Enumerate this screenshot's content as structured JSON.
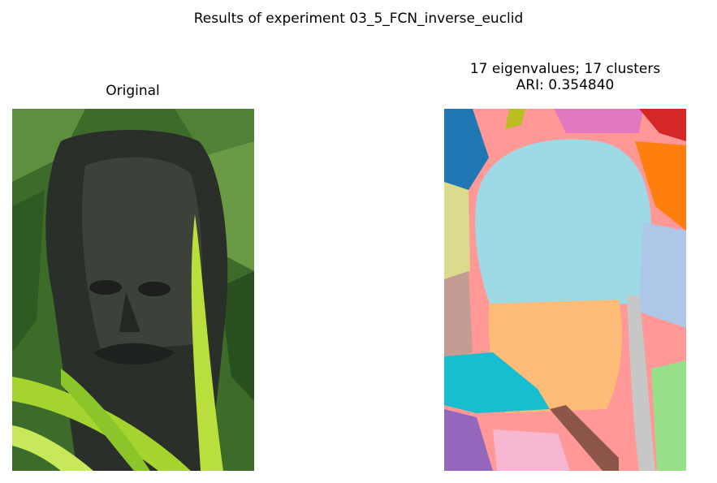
{
  "figure": {
    "suptitle": "Results of experiment 03_5_FCN_inverse_euclid"
  },
  "left_panel": {
    "title": "Original",
    "image_description": "photograph of a dark carved stone/wood statue face amid green leaves"
  },
  "right_panel": {
    "title_line1": "17 eigenvalues; 17 clusters",
    "title_line2": "ARI: 0.354840",
    "image_description": "segmentation map with 17 colored clusters"
  },
  "colors": {
    "segment_palette": [
      "#ff9896",
      "#9edae5",
      "#ffbb78",
      "#17becf",
      "#1f77b4",
      "#ff7f0e",
      "#d62728",
      "#e377c2",
      "#bcbd22",
      "#aec7e8",
      "#98df8a",
      "#9467bd",
      "#8c564b",
      "#f7b6d2",
      "#c7c7c7",
      "#dbdb8d",
      "#c49c94"
    ]
  }
}
